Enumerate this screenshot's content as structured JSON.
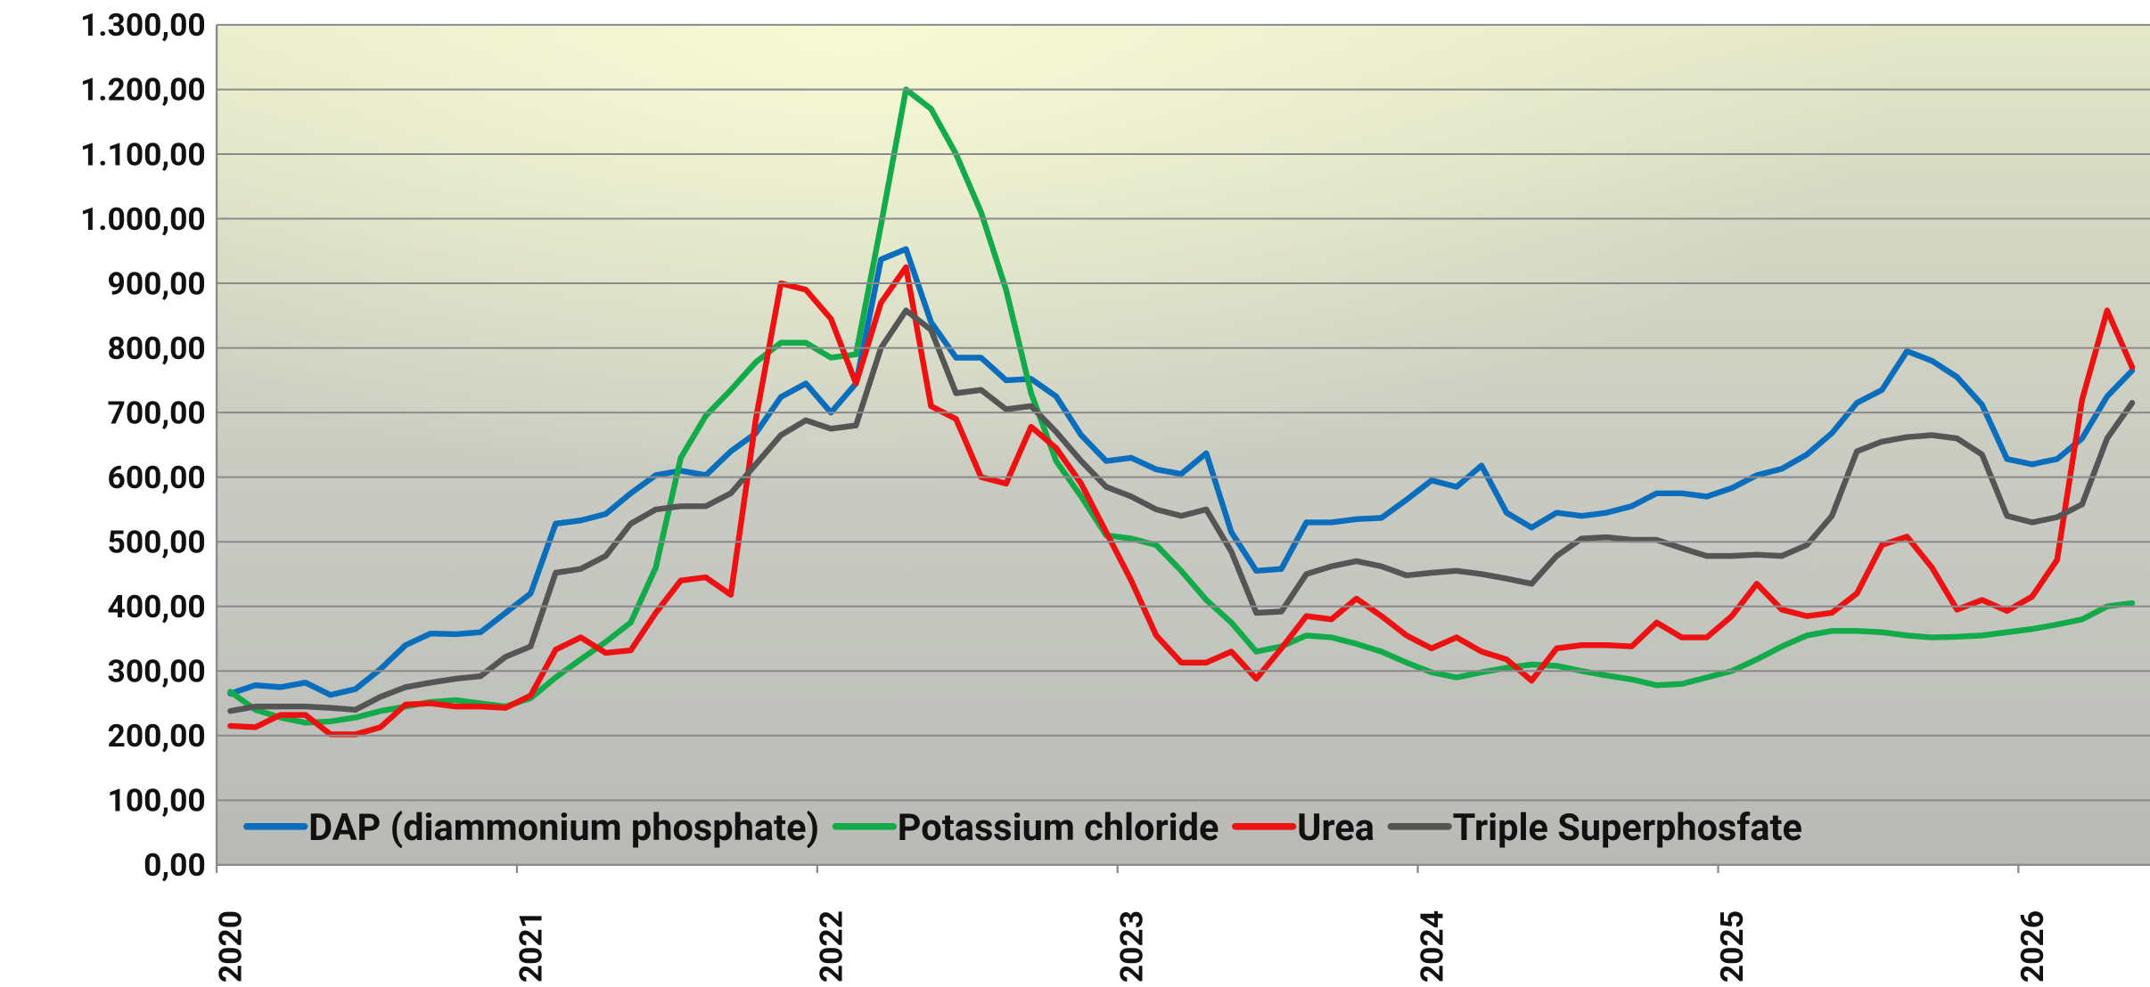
{
  "chart_data": {
    "type": "line",
    "categories": [
      "2020",
      null,
      null,
      null,
      null,
      null,
      null,
      null,
      null,
      null,
      null,
      null,
      "2021",
      null,
      null,
      null,
      null,
      null,
      null,
      null,
      null,
      null,
      null,
      null,
      "2022",
      null,
      null,
      null,
      null,
      null,
      null,
      null,
      null,
      null,
      null,
      null,
      "2023",
      null,
      null,
      null,
      null,
      null,
      null,
      null,
      null,
      null,
      null,
      null,
      "2024",
      null,
      null,
      null,
      null,
      null,
      null,
      null,
      null,
      null,
      null,
      null,
      "2025",
      null,
      null,
      null,
      null,
      null,
      null,
      null,
      null,
      null,
      null,
      null,
      "2026",
      null,
      null,
      null,
      null
    ],
    "series": [
      {
        "name": "DAP (diammonium phosphate)",
        "color": "#0a6ebd",
        "values": [
          265,
          278,
          275,
          282,
          263,
          272,
          303,
          340,
          358,
          357,
          360,
          390,
          420,
          528,
          533,
          543,
          575,
          603,
          610,
          603,
          640,
          668,
          724,
          745,
          700,
          745,
          937,
          953,
          840,
          785,
          785,
          750,
          752,
          725,
          665,
          625,
          630,
          612,
          605,
          637,
          515,
          455,
          458,
          530,
          530,
          535,
          537,
          565,
          595,
          585,
          618,
          545,
          522,
          545,
          540,
          545,
          555,
          575,
          575,
          570,
          583,
          603,
          613,
          635,
          668,
          715,
          735,
          795,
          780,
          755,
          712,
          628,
          620,
          628,
          660,
          725,
          765
        ]
      },
      {
        "name": "Potassium chloride",
        "color": "#13aa4a",
        "values": [
          268,
          240,
          228,
          220,
          222,
          228,
          238,
          245,
          252,
          255,
          250,
          245,
          258,
          290,
          318,
          345,
          375,
          460,
          630,
          695,
          735,
          778,
          808,
          808,
          785,
          790,
          990,
          1200,
          1170,
          1100,
          1010,
          890,
          730,
          625,
          570,
          510,
          505,
          495,
          455,
          410,
          375,
          330,
          338,
          355,
          352,
          342,
          330,
          313,
          298,
          290,
          298,
          305,
          310,
          308,
          300,
          293,
          287,
          278,
          280,
          290,
          300,
          318,
          338,
          355,
          362,
          362,
          360,
          355,
          352,
          353,
          355,
          360,
          365,
          372,
          380,
          400,
          405
        ]
      },
      {
        "name": "Urea",
        "color": "#ee1111",
        "values": [
          215,
          213,
          232,
          232,
          202,
          202,
          213,
          248,
          250,
          245,
          245,
          243,
          262,
          333,
          352,
          328,
          332,
          390,
          440,
          445,
          418,
          690,
          900,
          890,
          845,
          745,
          870,
          925,
          710,
          690,
          600,
          590,
          678,
          645,
          590,
          515,
          440,
          355,
          313,
          313,
          330,
          288,
          335,
          385,
          380,
          412,
          385,
          355,
          335,
          352,
          330,
          318,
          285,
          335,
          340,
          340,
          338,
          375,
          352,
          352,
          385,
          435,
          395,
          385,
          390,
          420,
          495,
          508,
          460,
          395,
          410,
          393,
          415,
          472,
          720,
          858,
          770
        ]
      },
      {
        "name": "Triple Superphosfate",
        "color": "#555555",
        "values": [
          238,
          245,
          245,
          245,
          243,
          240,
          260,
          275,
          282,
          288,
          292,
          322,
          338,
          452,
          458,
          478,
          528,
          550,
          555,
          555,
          575,
          620,
          665,
          688,
          675,
          680,
          800,
          858,
          828,
          730,
          735,
          705,
          710,
          670,
          625,
          585,
          570,
          550,
          540,
          550,
          485,
          390,
          392,
          450,
          462,
          470,
          462,
          448,
          452,
          455,
          450,
          443,
          435,
          478,
          505,
          507,
          503,
          503,
          490,
          478,
          478,
          480,
          478,
          495,
          540,
          640,
          655,
          662,
          665,
          660,
          635,
          540,
          530,
          538,
          558,
          660,
          715
        ]
      }
    ],
    "ylim": [
      0,
      1300
    ],
    "yticks": [
      {
        "value": 0,
        "label": "0,00"
      },
      {
        "value": 100,
        "label": "100,00"
      },
      {
        "value": 200,
        "label": "200,00"
      },
      {
        "value": 300,
        "label": "300,00"
      },
      {
        "value": 400,
        "label": "400,00"
      },
      {
        "value": 500,
        "label": "500,00"
      },
      {
        "value": 600,
        "label": "600,00"
      },
      {
        "value": 700,
        "label": "700,00"
      },
      {
        "value": 800,
        "label": "800,00"
      },
      {
        "value": 900,
        "label": "900,00"
      },
      {
        "value": 1000,
        "label": "1.000,00"
      },
      {
        "value": 1100,
        "label": "1.100,00"
      },
      {
        "value": 1200,
        "label": "1.200,00"
      },
      {
        "value": 1300,
        "label": "1.300,00"
      }
    ],
    "grid": true,
    "legend": "bottom-left"
  }
}
